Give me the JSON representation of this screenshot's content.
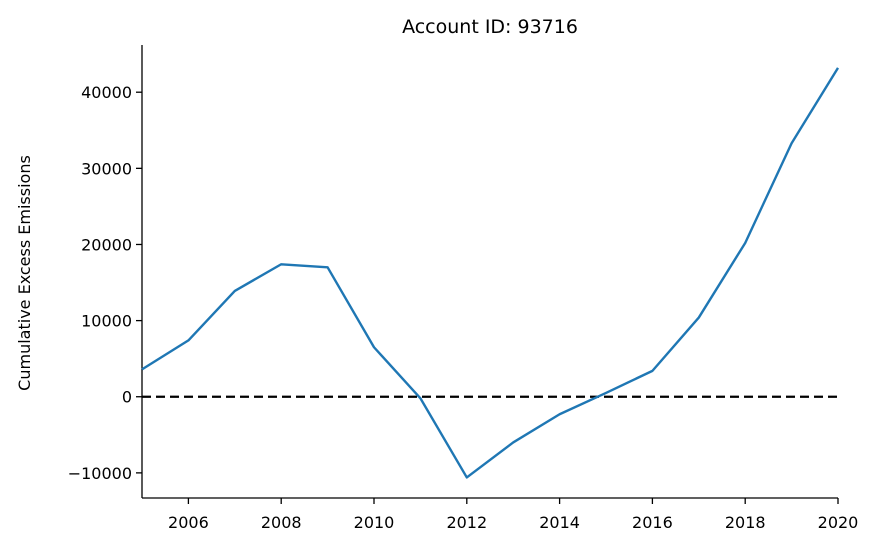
{
  "chart_data": {
    "type": "line",
    "title": "Account ID: 93716",
    "xlabel": "",
    "ylabel": "Cumulative Excess Emissions",
    "xlim": [
      2005,
      2020
    ],
    "ylim": [
      -13300,
      46200
    ],
    "x_ticks": [
      2006,
      2008,
      2010,
      2012,
      2014,
      2016,
      2018,
      2020
    ],
    "y_ticks": [
      -10000,
      0,
      10000,
      20000,
      30000,
      40000
    ],
    "y_tick_labels": [
      "−10000",
      "0",
      "10000",
      "20000",
      "30000",
      "40000"
    ],
    "grid": false,
    "reference_line": {
      "y": 0,
      "style": "dashed",
      "color": "#000000"
    },
    "series": [
      {
        "color": "#1f77b4",
        "x": [
          2005,
          2006,
          2007,
          2008,
          2009,
          2010,
          2011,
          2012,
          2013,
          2014,
          2015,
          2016,
          2017,
          2018,
          2019,
          2020
        ],
        "y": [
          3600,
          7400,
          13900,
          17400,
          17000,
          6500,
          -200,
          -10600,
          -6000,
          -2300,
          500,
          3400,
          10400,
          20200,
          33300,
          43200
        ]
      }
    ]
  }
}
